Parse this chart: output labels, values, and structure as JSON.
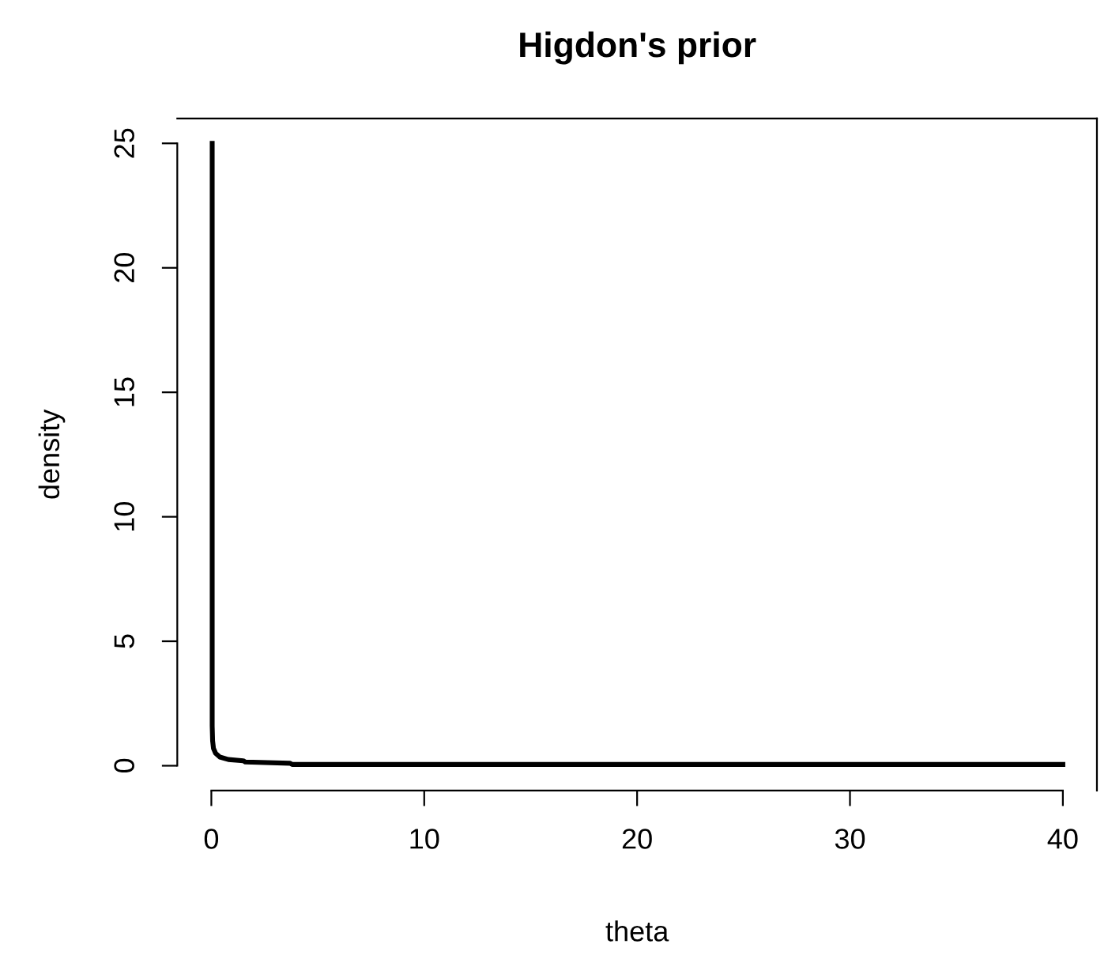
{
  "chart_data": {
    "type": "line",
    "title": "Higdon's prior",
    "xlabel": "theta",
    "ylabel": "density",
    "series": [
      {
        "color": "#000000",
        "x": [
          0.04,
          0.04,
          0.06,
          0.1,
          0.2,
          0.4,
          0.8,
          1.5,
          1.6,
          3.7,
          3.8,
          40
        ],
        "values": [
          25,
          1.6,
          1.0,
          0.7,
          0.5,
          0.35,
          0.25,
          0.2,
          0.15,
          0.1,
          0.05,
          0.05
        ]
      }
    ],
    "xlim": [
      -1.6,
      41.6
    ],
    "ylim": [
      -1,
      26
    ],
    "xticks": [
      0,
      10,
      20,
      30,
      40
    ],
    "yticks": [
      0,
      5,
      10,
      15,
      20,
      25
    ],
    "grid": false,
    "legend": false
  }
}
